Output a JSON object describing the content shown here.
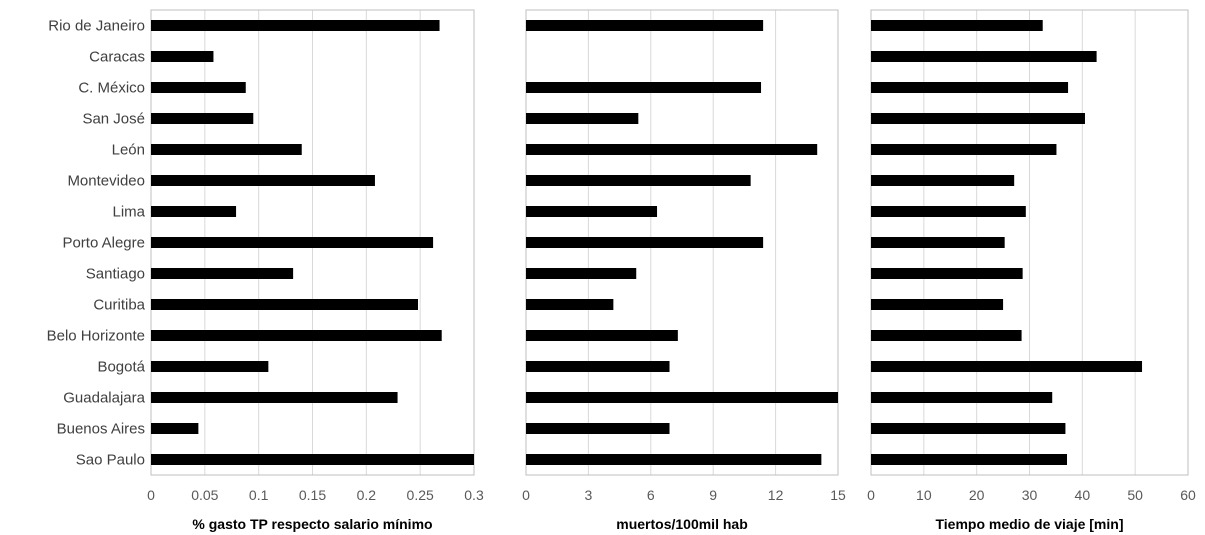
{
  "chart_data": [
    {
      "type": "bar",
      "orientation": "horizontal",
      "categories": [
        "Rio de Janeiro",
        "Caracas",
        "C. México",
        "San José",
        "León",
        "Montevideo",
        "Lima",
        "Porto Alegre",
        "Santiago",
        "Curitiba",
        "Belo Horizonte",
        "Bogotá",
        "Guadalajara",
        "Buenos Aires",
        "Sao Paulo"
      ],
      "values": [
        0.268,
        0.058,
        0.088,
        0.095,
        0.14,
        0.208,
        0.079,
        0.262,
        0.132,
        0.248,
        0.27,
        0.109,
        0.229,
        0.044,
        0.3
      ],
      "xlabel": "% gasto TP respecto salario mínimo",
      "xlim": [
        0,
        0.3
      ],
      "xticks": [
        "0",
        "0.05",
        "0.1",
        "0.15",
        "0.2",
        "0.25",
        "0.3"
      ],
      "grid": true
    },
    {
      "type": "bar",
      "orientation": "horizontal",
      "categories": [
        "Rio de Janeiro",
        "Caracas",
        "C. México",
        "San José",
        "León",
        "Montevideo",
        "Lima",
        "Porto Alegre",
        "Santiago",
        "Curitiba",
        "Belo Horizonte",
        "Bogotá",
        "Guadalajara",
        "Buenos Aires",
        "Sao Paulo"
      ],
      "values": [
        11.4,
        0,
        11.3,
        5.4,
        14.0,
        10.8,
        6.3,
        11.4,
        5.3,
        4.2,
        7.3,
        6.9,
        15.0,
        6.9,
        14.2
      ],
      "xlabel": "muertos/100mil hab",
      "xlim": [
        0,
        15
      ],
      "xticks": [
        "0",
        "3",
        "6",
        "9",
        "12",
        "15"
      ],
      "grid": true
    },
    {
      "type": "bar",
      "orientation": "horizontal",
      "categories": [
        "Rio de Janeiro",
        "Caracas",
        "C. México",
        "San José",
        "León",
        "Montevideo",
        "Lima",
        "Porto Alegre",
        "Santiago",
        "Curitiba",
        "Belo Horizonte",
        "Bogotá",
        "Guadalajara",
        "Buenos Aires",
        "Sao Paulo"
      ],
      "values": [
        32.5,
        42.7,
        37.3,
        40.5,
        35.1,
        27.1,
        29.3,
        25.3,
        28.7,
        25.0,
        28.5,
        51.3,
        34.3,
        36.8,
        37.1
      ],
      "xlabel": "Tiempo medio de viaje [min]",
      "xlim": [
        0,
        60
      ],
      "xticks": [
        "0",
        "10",
        "20",
        "30",
        "40",
        "50",
        "60"
      ],
      "grid": true
    }
  ]
}
